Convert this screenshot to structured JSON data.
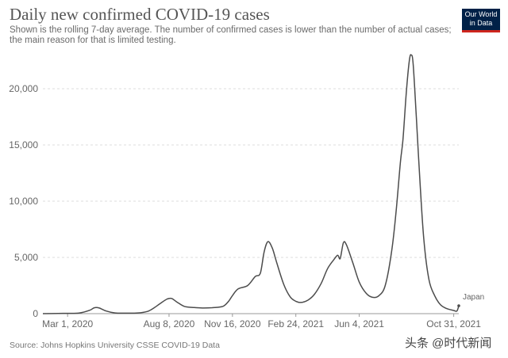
{
  "header": {
    "title": "Daily new confirmed COVID-19 cases",
    "subtitle": "Shown is the rolling 7-day average. The number of confirmed cases is lower than the number of actual cases; the main reason for that is limited testing."
  },
  "logo": {
    "line1": "Our World",
    "line2": "in Data",
    "bg_color": "#002147",
    "accent_color": "#ce261e"
  },
  "footer": {
    "source": "Source: Johns Hopkins University CSSE COVID-19 Data",
    "watermark": "头条 @时代新闻"
  },
  "colors": {
    "line": "#4c4c4c",
    "grid": "#dddddd",
    "text": "#666666"
  },
  "chart_data": {
    "type": "line",
    "y_ticks": [
      "0",
      "5,000",
      "10,000",
      "15,000",
      "20,000"
    ],
    "x_ticks": [
      "Mar 1, 2020",
      "Aug 8, 2020",
      "Nov 16, 2020",
      "Feb 24, 2021",
      "Jun 4, 2021",
      "Oct 31, 2021"
    ],
    "ylim": [
      0,
      20000
    ],
    "grid": "horizontal dashed",
    "series": [
      {
        "name": "Japan",
        "points": [
          [
            "2020-01-22",
            0
          ],
          [
            "2020-02-15",
            20
          ],
          [
            "2020-03-01",
            30
          ],
          [
            "2020-03-20",
            60
          ],
          [
            "2020-04-05",
            300
          ],
          [
            "2020-04-12",
            520
          ],
          [
            "2020-04-20",
            500
          ],
          [
            "2020-05-01",
            230
          ],
          [
            "2020-05-15",
            60
          ],
          [
            "2020-06-01",
            40
          ],
          [
            "2020-06-20",
            60
          ],
          [
            "2020-07-05",
            200
          ],
          [
            "2020-07-15",
            500
          ],
          [
            "2020-07-25",
            900
          ],
          [
            "2020-08-05",
            1300
          ],
          [
            "2020-08-12",
            1350
          ],
          [
            "2020-08-20",
            1050
          ],
          [
            "2020-09-01",
            650
          ],
          [
            "2020-09-15",
            550
          ],
          [
            "2020-10-01",
            500
          ],
          [
            "2020-10-15",
            530
          ],
          [
            "2020-11-01",
            650
          ],
          [
            "2020-11-10",
            1100
          ],
          [
            "2020-11-16",
            1600
          ],
          [
            "2020-11-25",
            2200
          ],
          [
            "2020-12-10",
            2500
          ],
          [
            "2020-12-22",
            3300
          ],
          [
            "2020-12-30",
            3600
          ],
          [
            "2021-01-05",
            5500
          ],
          [
            "2021-01-11",
            6400
          ],
          [
            "2021-01-18",
            5800
          ],
          [
            "2021-01-25",
            4500
          ],
          [
            "2021-02-05",
            2600
          ],
          [
            "2021-02-15",
            1500
          ],
          [
            "2021-02-24",
            1100
          ],
          [
            "2021-03-05",
            1000
          ],
          [
            "2021-03-15",
            1200
          ],
          [
            "2021-03-25",
            1700
          ],
          [
            "2021-04-05",
            2700
          ],
          [
            "2021-04-15",
            4000
          ],
          [
            "2021-04-25",
            4800
          ],
          [
            "2021-05-01",
            5200
          ],
          [
            "2021-05-05",
            4900
          ],
          [
            "2021-05-10",
            6300
          ],
          [
            "2021-05-15",
            6100
          ],
          [
            "2021-05-25",
            4500
          ],
          [
            "2021-06-04",
            2800
          ],
          [
            "2021-06-15",
            1800
          ],
          [
            "2021-06-25",
            1450
          ],
          [
            "2021-07-05",
            1600
          ],
          [
            "2021-07-15",
            2500
          ],
          [
            "2021-07-25",
            5500
          ],
          [
            "2021-08-01",
            9000
          ],
          [
            "2021-08-08",
            13500
          ],
          [
            "2021-08-12",
            15500
          ],
          [
            "2021-08-17",
            19500
          ],
          [
            "2021-08-22",
            22500
          ],
          [
            "2021-08-25",
            23000
          ],
          [
            "2021-08-28",
            22200
          ],
          [
            "2021-09-02",
            17500
          ],
          [
            "2021-09-08",
            11500
          ],
          [
            "2021-09-14",
            6500
          ],
          [
            "2021-09-22",
            3000
          ],
          [
            "2021-10-01",
            1600
          ],
          [
            "2021-10-10",
            800
          ],
          [
            "2021-10-20",
            450
          ],
          [
            "2021-10-31",
            280
          ],
          [
            "2021-11-05",
            230
          ],
          [
            "2021-11-08",
            700
          ]
        ]
      }
    ]
  }
}
